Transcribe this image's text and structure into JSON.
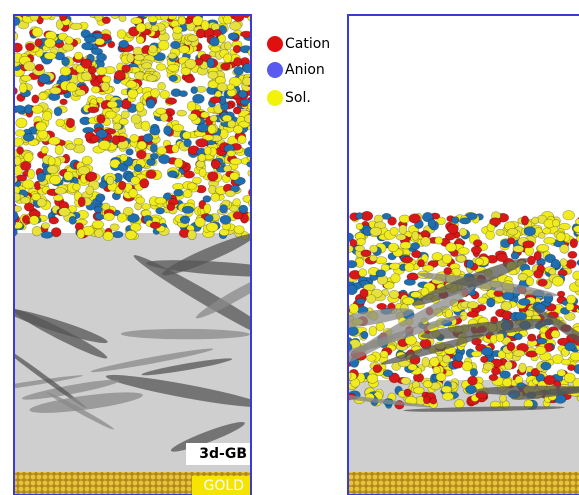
{
  "legend": {
    "items": [
      "Cation",
      "Anion",
      "Sol."
    ]
  },
  "labels": {
    "electrode": "3d-GB",
    "substrate": "GOLD"
  }
}
